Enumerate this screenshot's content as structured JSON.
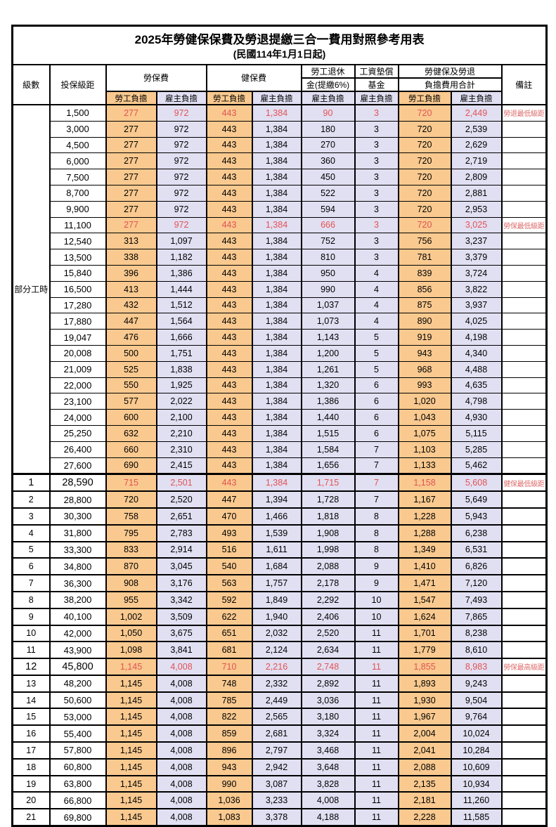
{
  "title": "2025年勞健保保費及勞退提繳三合一費用對照參考用表",
  "subtitle": "(民國114年1月1日起)",
  "header": {
    "level": "級數",
    "bracket": "投保級距",
    "labor": "勞保費",
    "health": "健保費",
    "pension_line1": "勞工退休",
    "pension_line2": "金(提繳6%)",
    "wage_fund_line1": "工資墊償",
    "wage_fund_line2": "基金",
    "total_line1": "勞健保及勞退",
    "total_line2": "負擔費用合計",
    "remark": "備註",
    "employee": "勞工負擔",
    "employer": "雇主負擔"
  },
  "part_time_label": "部分工時",
  "part_time_rowspan": 23,
  "column_keys": [
    "labor-employee",
    "labor-employer",
    "health-employee",
    "health-employer",
    "pension-employer",
    "wagefund-employer",
    "total-employee",
    "total-employer"
  ],
  "column_styles": [
    "emp",
    "er",
    "emp",
    "er",
    "er",
    "er",
    "emp",
    "er"
  ],
  "colors": {
    "orange": "#f9c98f",
    "lavender": "#e1dff2",
    "red": "#e25353",
    "remark_red": "#dd6b6b",
    "border": "#000000",
    "text": "#000000"
  },
  "rows": [
    {
      "level": "",
      "bracket": "1,500",
      "values": [
        "277",
        "972",
        "443",
        "1,384",
        "90",
        "3",
        "720",
        "2,449"
      ],
      "remark": "勞退最低級距",
      "highlight": true,
      "part_time": true
    },
    {
      "level": "",
      "bracket": "3,000",
      "values": [
        "277",
        "972",
        "443",
        "1,384",
        "180",
        "3",
        "720",
        "2,539"
      ],
      "remark": "",
      "part_time": true
    },
    {
      "level": "",
      "bracket": "4,500",
      "values": [
        "277",
        "972",
        "443",
        "1,384",
        "270",
        "3",
        "720",
        "2,629"
      ],
      "remark": "",
      "part_time": true
    },
    {
      "level": "",
      "bracket": "6,000",
      "values": [
        "277",
        "972",
        "443",
        "1,384",
        "360",
        "3",
        "720",
        "2,719"
      ],
      "remark": "",
      "part_time": true
    },
    {
      "level": "",
      "bracket": "7,500",
      "values": [
        "277",
        "972",
        "443",
        "1,384",
        "450",
        "3",
        "720",
        "2,809"
      ],
      "remark": "",
      "part_time": true
    },
    {
      "level": "",
      "bracket": "8,700",
      "values": [
        "277",
        "972",
        "443",
        "1,384",
        "522",
        "3",
        "720",
        "2,881"
      ],
      "remark": "",
      "part_time": true
    },
    {
      "level": "",
      "bracket": "9,900",
      "values": [
        "277",
        "972",
        "443",
        "1,384",
        "594",
        "3",
        "720",
        "2,953"
      ],
      "remark": "",
      "part_time": true
    },
    {
      "level": "",
      "bracket": "11,100",
      "values": [
        "277",
        "972",
        "443",
        "1,384",
        "666",
        "3",
        "720",
        "3,025"
      ],
      "remark": "勞保最低級距",
      "highlight": true,
      "part_time": true
    },
    {
      "level": "",
      "bracket": "12,540",
      "values": [
        "313",
        "1,097",
        "443",
        "1,384",
        "752",
        "3",
        "756",
        "3,237"
      ],
      "remark": "",
      "part_time": true
    },
    {
      "level": "",
      "bracket": "13,500",
      "values": [
        "338",
        "1,182",
        "443",
        "1,384",
        "810",
        "3",
        "781",
        "3,379"
      ],
      "remark": "",
      "part_time": true
    },
    {
      "level": "",
      "bracket": "15,840",
      "values": [
        "396",
        "1,386",
        "443",
        "1,384",
        "950",
        "4",
        "839",
        "3,724"
      ],
      "remark": "",
      "part_time": true
    },
    {
      "level": "",
      "bracket": "16,500",
      "values": [
        "413",
        "1,444",
        "443",
        "1,384",
        "990",
        "4",
        "856",
        "3,822"
      ],
      "remark": "",
      "part_time": true
    },
    {
      "level": "",
      "bracket": "17,280",
      "values": [
        "432",
        "1,512",
        "443",
        "1,384",
        "1,037",
        "4",
        "875",
        "3,937"
      ],
      "remark": "",
      "part_time": true
    },
    {
      "level": "",
      "bracket": "17,880",
      "values": [
        "447",
        "1,564",
        "443",
        "1,384",
        "1,073",
        "4",
        "890",
        "4,025"
      ],
      "remark": "",
      "part_time": true
    },
    {
      "level": "",
      "bracket": "19,047",
      "values": [
        "476",
        "1,666",
        "443",
        "1,384",
        "1,143",
        "5",
        "919",
        "4,198"
      ],
      "remark": "",
      "part_time": true
    },
    {
      "level": "",
      "bracket": "20,008",
      "values": [
        "500",
        "1,751",
        "443",
        "1,384",
        "1,200",
        "5",
        "943",
        "4,340"
      ],
      "remark": "",
      "part_time": true
    },
    {
      "level": "",
      "bracket": "21,009",
      "values": [
        "525",
        "1,838",
        "443",
        "1,384",
        "1,261",
        "5",
        "968",
        "4,488"
      ],
      "remark": "",
      "part_time": true
    },
    {
      "level": "",
      "bracket": "22,000",
      "values": [
        "550",
        "1,925",
        "443",
        "1,384",
        "1,320",
        "6",
        "993",
        "4,635"
      ],
      "remark": "",
      "part_time": true
    },
    {
      "level": "",
      "bracket": "23,100",
      "values": [
        "577",
        "2,022",
        "443",
        "1,384",
        "1,386",
        "6",
        "1,020",
        "4,798"
      ],
      "remark": "",
      "part_time": true
    },
    {
      "level": "",
      "bracket": "24,000",
      "values": [
        "600",
        "2,100",
        "443",
        "1,384",
        "1,440",
        "6",
        "1,043",
        "4,930"
      ],
      "remark": "",
      "part_time": true
    },
    {
      "level": "",
      "bracket": "25,250",
      "values": [
        "632",
        "2,210",
        "443",
        "1,384",
        "1,515",
        "6",
        "1,075",
        "5,115"
      ],
      "remark": "",
      "part_time": true
    },
    {
      "level": "",
      "bracket": "26,400",
      "values": [
        "660",
        "2,310",
        "443",
        "1,384",
        "1,584",
        "7",
        "1,103",
        "5,285"
      ],
      "remark": "",
      "part_time": true
    },
    {
      "level": "",
      "bracket": "27,600",
      "values": [
        "690",
        "2,415",
        "443",
        "1,384",
        "1,656",
        "7",
        "1,133",
        "5,462"
      ],
      "remark": "",
      "part_time": true
    },
    {
      "level": "1",
      "bracket": "28,590",
      "values": [
        "715",
        "2,501",
        "443",
        "1,384",
        "1,715",
        "7",
        "1,158",
        "5,608"
      ],
      "remark": "健保最低級距",
      "highlight": true,
      "section_start": true,
      "big": true
    },
    {
      "level": "2",
      "bracket": "28,800",
      "values": [
        "720",
        "2,520",
        "447",
        "1,394",
        "1,728",
        "7",
        "1,167",
        "5,649"
      ],
      "remark": ""
    },
    {
      "level": "3",
      "bracket": "30,300",
      "values": [
        "758",
        "2,651",
        "470",
        "1,466",
        "1,818",
        "8",
        "1,228",
        "5,943"
      ],
      "remark": ""
    },
    {
      "level": "4",
      "bracket": "31,800",
      "values": [
        "795",
        "2,783",
        "493",
        "1,539",
        "1,908",
        "8",
        "1,288",
        "6,238"
      ],
      "remark": ""
    },
    {
      "level": "5",
      "bracket": "33,300",
      "values": [
        "833",
        "2,914",
        "516",
        "1,611",
        "1,998",
        "8",
        "1,349",
        "6,531"
      ],
      "remark": ""
    },
    {
      "level": "6",
      "bracket": "34,800",
      "values": [
        "870",
        "3,045",
        "540",
        "1,684",
        "2,088",
        "9",
        "1,410",
        "6,826"
      ],
      "remark": ""
    },
    {
      "level": "7",
      "bracket": "36,300",
      "values": [
        "908",
        "3,176",
        "563",
        "1,757",
        "2,178",
        "9",
        "1,471",
        "7,120"
      ],
      "remark": ""
    },
    {
      "level": "8",
      "bracket": "38,200",
      "values": [
        "955",
        "3,342",
        "592",
        "1,849",
        "2,292",
        "10",
        "1,547",
        "7,493"
      ],
      "remark": ""
    },
    {
      "level": "9",
      "bracket": "40,100",
      "values": [
        "1,002",
        "3,509",
        "622",
        "1,940",
        "2,406",
        "10",
        "1,624",
        "7,865"
      ],
      "remark": ""
    },
    {
      "level": "10",
      "bracket": "42,000",
      "values": [
        "1,050",
        "3,675",
        "651",
        "2,032",
        "2,520",
        "11",
        "1,701",
        "8,238"
      ],
      "remark": ""
    },
    {
      "level": "11",
      "bracket": "43,900",
      "values": [
        "1,098",
        "3,841",
        "681",
        "2,124",
        "2,634",
        "11",
        "1,779",
        "8,610"
      ],
      "remark": ""
    },
    {
      "level": "12",
      "bracket": "45,800",
      "values": [
        "1,145",
        "4,008",
        "710",
        "2,216",
        "2,748",
        "11",
        "1,855",
        "8,983"
      ],
      "remark": "勞保最高級距",
      "highlight": true,
      "big": true
    },
    {
      "level": "13",
      "bracket": "48,200",
      "values": [
        "1,145",
        "4,008",
        "748",
        "2,332",
        "2,892",
        "11",
        "1,893",
        "9,243"
      ],
      "remark": ""
    },
    {
      "level": "14",
      "bracket": "50,600",
      "values": [
        "1,145",
        "4,008",
        "785",
        "2,449",
        "3,036",
        "11",
        "1,930",
        "9,504"
      ],
      "remark": ""
    },
    {
      "level": "15",
      "bracket": "53,000",
      "values": [
        "1,145",
        "4,008",
        "822",
        "2,565",
        "3,180",
        "11",
        "1,967",
        "9,764"
      ],
      "remark": ""
    },
    {
      "level": "16",
      "bracket": "55,400",
      "values": [
        "1,145",
        "4,008",
        "859",
        "2,681",
        "3,324",
        "11",
        "2,004",
        "10,024"
      ],
      "remark": ""
    },
    {
      "level": "17",
      "bracket": "57,800",
      "values": [
        "1,145",
        "4,008",
        "896",
        "2,797",
        "3,468",
        "11",
        "2,041",
        "10,284"
      ],
      "remark": ""
    },
    {
      "level": "18",
      "bracket": "60,800",
      "values": [
        "1,145",
        "4,008",
        "943",
        "2,942",
        "3,648",
        "11",
        "2,088",
        "10,609"
      ],
      "remark": ""
    },
    {
      "level": "19",
      "bracket": "63,800",
      "values": [
        "1,145",
        "4,008",
        "990",
        "3,087",
        "3,828",
        "11",
        "2,135",
        "10,934"
      ],
      "remark": ""
    },
    {
      "level": "20",
      "bracket": "66,800",
      "values": [
        "1,145",
        "4,008",
        "1,036",
        "3,233",
        "4,008",
        "11",
        "2,181",
        "11,260"
      ],
      "remark": ""
    },
    {
      "level": "21",
      "bracket": "69,800",
      "values": [
        "1,145",
        "4,008",
        "1,083",
        "3,378",
        "4,188",
        "11",
        "2,228",
        "11,585"
      ],
      "remark": ""
    }
  ]
}
